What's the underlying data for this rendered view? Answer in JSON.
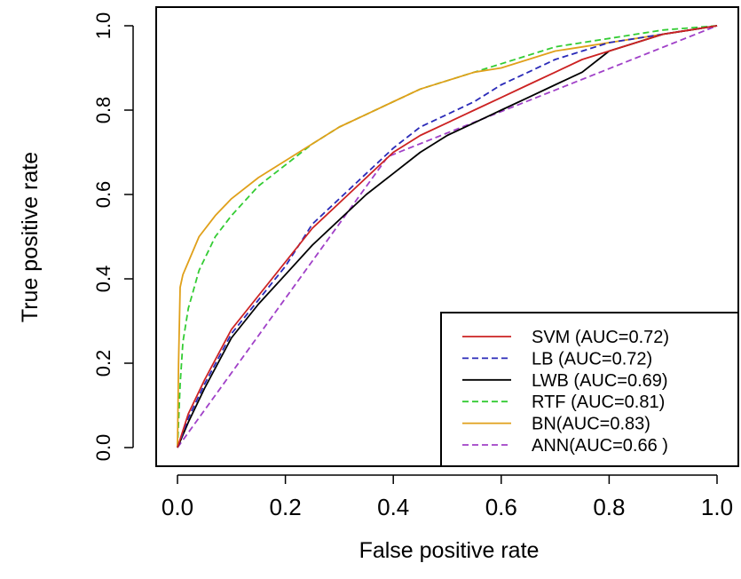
{
  "chart_data": {
    "type": "line",
    "title": "",
    "xlabel": "False positive rate",
    "ylabel": "True positive rate",
    "xlim": [
      0.0,
      1.0
    ],
    "ylim": [
      0.0,
      1.0
    ],
    "x_ticks": [
      "0.0",
      "0.2",
      "0.4",
      "0.6",
      "0.8",
      "1.0"
    ],
    "y_ticks": [
      "0.0",
      "0.2",
      "0.4",
      "0.6",
      "0.8",
      "1.0"
    ],
    "grid": false,
    "legend_position": "bottom-right",
    "series": [
      {
        "name": "SVM (AUC=0.72)",
        "color": "#cc2222",
        "dash": "solid",
        "points": [
          [
            0,
            0
          ],
          [
            0.02,
            0.08
          ],
          [
            0.05,
            0.16
          ],
          [
            0.1,
            0.28
          ],
          [
            0.15,
            0.36
          ],
          [
            0.2,
            0.44
          ],
          [
            0.25,
            0.52
          ],
          [
            0.3,
            0.58
          ],
          [
            0.35,
            0.64
          ],
          [
            0.4,
            0.7
          ],
          [
            0.45,
            0.74
          ],
          [
            0.5,
            0.77
          ],
          [
            0.55,
            0.8
          ],
          [
            0.6,
            0.83
          ],
          [
            0.65,
            0.86
          ],
          [
            0.7,
            0.89
          ],
          [
            0.75,
            0.92
          ],
          [
            0.8,
            0.94
          ],
          [
            0.85,
            0.96
          ],
          [
            0.9,
            0.98
          ],
          [
            0.95,
            0.99
          ],
          [
            1,
            1
          ]
        ]
      },
      {
        "name": "LB (AUC=0.72)",
        "color": "#2a2ab8",
        "dash": "dashed",
        "points": [
          [
            0,
            0
          ],
          [
            0.02,
            0.07
          ],
          [
            0.05,
            0.15
          ],
          [
            0.1,
            0.27
          ],
          [
            0.15,
            0.35
          ],
          [
            0.2,
            0.43
          ],
          [
            0.25,
            0.53
          ],
          [
            0.3,
            0.59
          ],
          [
            0.35,
            0.65
          ],
          [
            0.4,
            0.71
          ],
          [
            0.45,
            0.76
          ],
          [
            0.5,
            0.79
          ],
          [
            0.55,
            0.82
          ],
          [
            0.6,
            0.86
          ],
          [
            0.65,
            0.89
          ],
          [
            0.7,
            0.92
          ],
          [
            0.75,
            0.94
          ],
          [
            0.8,
            0.96
          ],
          [
            0.85,
            0.97
          ],
          [
            0.9,
            0.98
          ],
          [
            0.95,
            0.99
          ],
          [
            1,
            1
          ]
        ]
      },
      {
        "name": "LWB (AUC=0.69)",
        "color": "#000000",
        "dash": "solid",
        "points": [
          [
            0,
            0
          ],
          [
            0.02,
            0.06
          ],
          [
            0.05,
            0.14
          ],
          [
            0.1,
            0.26
          ],
          [
            0.15,
            0.34
          ],
          [
            0.2,
            0.41
          ],
          [
            0.25,
            0.48
          ],
          [
            0.3,
            0.54
          ],
          [
            0.35,
            0.6
          ],
          [
            0.4,
            0.65
          ],
          [
            0.45,
            0.7
          ],
          [
            0.5,
            0.74
          ],
          [
            0.55,
            0.77
          ],
          [
            0.6,
            0.8
          ],
          [
            0.65,
            0.83
          ],
          [
            0.7,
            0.86
          ],
          [
            0.75,
            0.89
          ],
          [
            0.8,
            0.94
          ],
          [
            0.85,
            0.96
          ],
          [
            0.9,
            0.98
          ],
          [
            0.95,
            0.99
          ],
          [
            1,
            1
          ]
        ]
      },
      {
        "name": "RTF (AUC=0.81)",
        "color": "#33cc33",
        "dash": "dashed",
        "points": [
          [
            0,
            0
          ],
          [
            0.005,
            0.15
          ],
          [
            0.01,
            0.25
          ],
          [
            0.02,
            0.33
          ],
          [
            0.04,
            0.42
          ],
          [
            0.07,
            0.5
          ],
          [
            0.1,
            0.55
          ],
          [
            0.15,
            0.62
          ],
          [
            0.2,
            0.67
          ],
          [
            0.25,
            0.72
          ],
          [
            0.3,
            0.76
          ],
          [
            0.35,
            0.79
          ],
          [
            0.4,
            0.82
          ],
          [
            0.45,
            0.85
          ],
          [
            0.5,
            0.87
          ],
          [
            0.55,
            0.89
          ],
          [
            0.6,
            0.91
          ],
          [
            0.65,
            0.93
          ],
          [
            0.7,
            0.95
          ],
          [
            0.75,
            0.96
          ],
          [
            0.8,
            0.97
          ],
          [
            0.85,
            0.98
          ],
          [
            0.9,
            0.99
          ],
          [
            0.95,
            0.995
          ],
          [
            1,
            1
          ]
        ]
      },
      {
        "name": "BN(AUC=0.83)",
        "color": "#e0a01a",
        "dash": "solid",
        "points": [
          [
            0,
            0
          ],
          [
            0.002,
            0.2
          ],
          [
            0.005,
            0.38
          ],
          [
            0.01,
            0.41
          ],
          [
            0.02,
            0.44
          ],
          [
            0.04,
            0.5
          ],
          [
            0.07,
            0.55
          ],
          [
            0.1,
            0.59
          ],
          [
            0.15,
            0.64
          ],
          [
            0.2,
            0.68
          ],
          [
            0.25,
            0.72
          ],
          [
            0.3,
            0.76
          ],
          [
            0.35,
            0.79
          ],
          [
            0.4,
            0.82
          ],
          [
            0.45,
            0.85
          ],
          [
            0.5,
            0.87
          ],
          [
            0.55,
            0.89
          ],
          [
            0.6,
            0.9
          ],
          [
            0.65,
            0.92
          ],
          [
            0.7,
            0.94
          ],
          [
            0.75,
            0.95
          ],
          [
            0.8,
            0.96
          ],
          [
            0.85,
            0.97
          ],
          [
            0.9,
            0.98
          ],
          [
            0.95,
            0.99
          ],
          [
            1,
            1
          ]
        ]
      },
      {
        "name": "ANN(AUC=0.66 )",
        "color": "#a040c8",
        "dash": "dashed",
        "points": [
          [
            0,
            0
          ],
          [
            0.39,
            0.69
          ],
          [
            1,
            1
          ]
        ]
      }
    ]
  }
}
